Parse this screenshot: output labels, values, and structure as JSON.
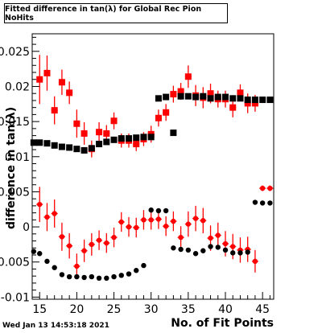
{
  "chart_data": {
    "type": "scatter",
    "title": "Fitted difference in tan(λ) for Global Rec Pion NoHits",
    "xlabel": "No. of Fit Points",
    "ylabel": "difference in tan(λ)",
    "xlim": [
      14,
      46.5
    ],
    "ylim": [
      -0.0103,
      0.0275
    ],
    "xticks": [
      15,
      20,
      25,
      30,
      35,
      40,
      45
    ],
    "yticks": [
      -0.01,
      -0.005,
      0,
      0.005,
      0.01,
      0.015,
      0.02,
      0.025
    ],
    "ytick_labels": [
      "-0.01",
      "-0.005",
      "0",
      "0.005",
      "0.01",
      "0.015",
      "0.02",
      "0.025"
    ],
    "grid": false,
    "legend": "none",
    "timestamp": "Wed Jan 13 14:53:18 2021",
    "series": [
      {
        "color": "#ff0000",
        "marker": "square",
        "x": [
          15,
          16,
          17,
          18,
          19,
          20,
          21,
          22,
          23,
          24,
          25,
          26,
          27,
          28,
          29,
          30,
          31,
          32,
          33,
          34,
          35,
          36,
          37,
          38,
          39,
          40,
          41,
          42,
          43,
          44
        ],
        "y": [
          0.021,
          0.0219,
          0.0166,
          0.0206,
          0.0191,
          0.0147,
          0.0133,
          0.0111,
          0.0135,
          0.0133,
          0.0151,
          0.0123,
          0.0123,
          0.0118,
          0.0125,
          0.0132,
          0.0155,
          0.0163,
          0.0189,
          0.0193,
          0.0214,
          0.0187,
          0.0184,
          0.019,
          0.0182,
          0.0182,
          0.017,
          0.0191,
          0.0176,
          0.0176
        ],
        "err": [
          0.0035,
          0.0025,
          0.002,
          0.0018,
          0.0016,
          0.002,
          0.0016,
          0.0012,
          0.0014,
          0.0012,
          0.0012,
          0.001,
          0.001,
          0.001,
          0.001,
          0.0012,
          0.0012,
          0.0012,
          0.0012,
          0.0012,
          0.0016,
          0.0015,
          0.0015,
          0.0014,
          0.0012,
          0.0012,
          0.0014,
          0.0012,
          0.0014,
          0.0012
        ]
      },
      {
        "color": "#000000",
        "marker": "square",
        "x": [
          14.2,
          15,
          16,
          17,
          18,
          19,
          20,
          21,
          22,
          23,
          24,
          25,
          26,
          27,
          28,
          29,
          30,
          31,
          32,
          33,
          34,
          35,
          36,
          37,
          38,
          39,
          40,
          41,
          42,
          43,
          44,
          45,
          46
        ],
        "y": [
          0.012,
          0.012,
          0.0119,
          0.0116,
          0.0114,
          0.0113,
          0.0111,
          0.0109,
          0.0112,
          0.0118,
          0.0121,
          0.0124,
          0.0126,
          0.0126,
          0.0127,
          0.0128,
          0.0128,
          0.0183,
          0.0185,
          0.0134,
          0.0186,
          0.0186,
          0.0185,
          0.0186,
          0.0183,
          0.0185,
          0.0185,
          0.0183,
          0.0183,
          0.0181,
          0.0181,
          0.0181,
          0.0181
        ]
      },
      {
        "color": "#ff0000",
        "marker": "circle",
        "x": [
          15,
          16,
          17,
          18,
          19,
          20,
          21,
          22,
          23,
          24,
          25,
          26,
          27,
          28,
          29,
          30,
          31,
          32,
          33,
          34,
          35,
          36,
          37,
          38,
          39,
          40,
          41,
          42,
          43,
          44,
          45,
          46
        ],
        "y": [
          0.0032,
          0.0014,
          0.0019,
          -0.0014,
          -0.0027,
          -0.0056,
          -0.0034,
          -0.0025,
          -0.0019,
          -0.0023,
          -0.0015,
          0.0007,
          0.0,
          -0.0001,
          0.001,
          0.001,
          0.0011,
          0.0001,
          0.0008,
          -0.0015,
          0.0004,
          0.0012,
          0.0009,
          -0.0016,
          -0.0012,
          -0.0024,
          -0.0028,
          -0.0033,
          -0.0032,
          -0.0049,
          0.0055,
          0.0055
        ],
        "err": [
          0.0025,
          0.002,
          0.002,
          0.002,
          0.0018,
          0.0018,
          0.0016,
          0.0016,
          0.0014,
          0.0014,
          0.0014,
          0.0014,
          0.0014,
          0.0014,
          0.0014,
          0.0014,
          0.0014,
          0.0014,
          0.0014,
          0.0016,
          0.0018,
          0.0018,
          0.0018,
          0.0018,
          0.0018,
          0.0018,
          0.0018,
          0.0018,
          0.0018,
          0.0016,
          0.0004,
          0.0004
        ]
      },
      {
        "color": "#000000",
        "marker": "circle",
        "x": [
          14.2,
          15,
          16,
          17,
          18,
          19,
          20,
          21,
          22,
          23,
          24,
          25,
          26,
          27,
          28,
          29,
          30,
          31,
          32,
          33,
          34,
          35,
          36,
          37,
          38,
          39,
          40,
          41,
          42,
          43,
          44,
          45,
          46
        ],
        "y": [
          -0.0035,
          -0.0038,
          -0.0049,
          -0.0058,
          -0.0068,
          -0.0071,
          -0.0071,
          -0.0072,
          -0.0071,
          -0.0073,
          -0.0073,
          -0.0071,
          -0.0069,
          -0.0067,
          -0.0062,
          -0.0055,
          0.0024,
          0.0023,
          0.0023,
          -0.003,
          -0.0032,
          -0.0033,
          -0.0038,
          -0.0034,
          -0.0028,
          -0.0029,
          -0.0033,
          -0.0037,
          -0.0037,
          -0.0036,
          0.0035,
          0.0034,
          0.0034
        ]
      }
    ]
  }
}
